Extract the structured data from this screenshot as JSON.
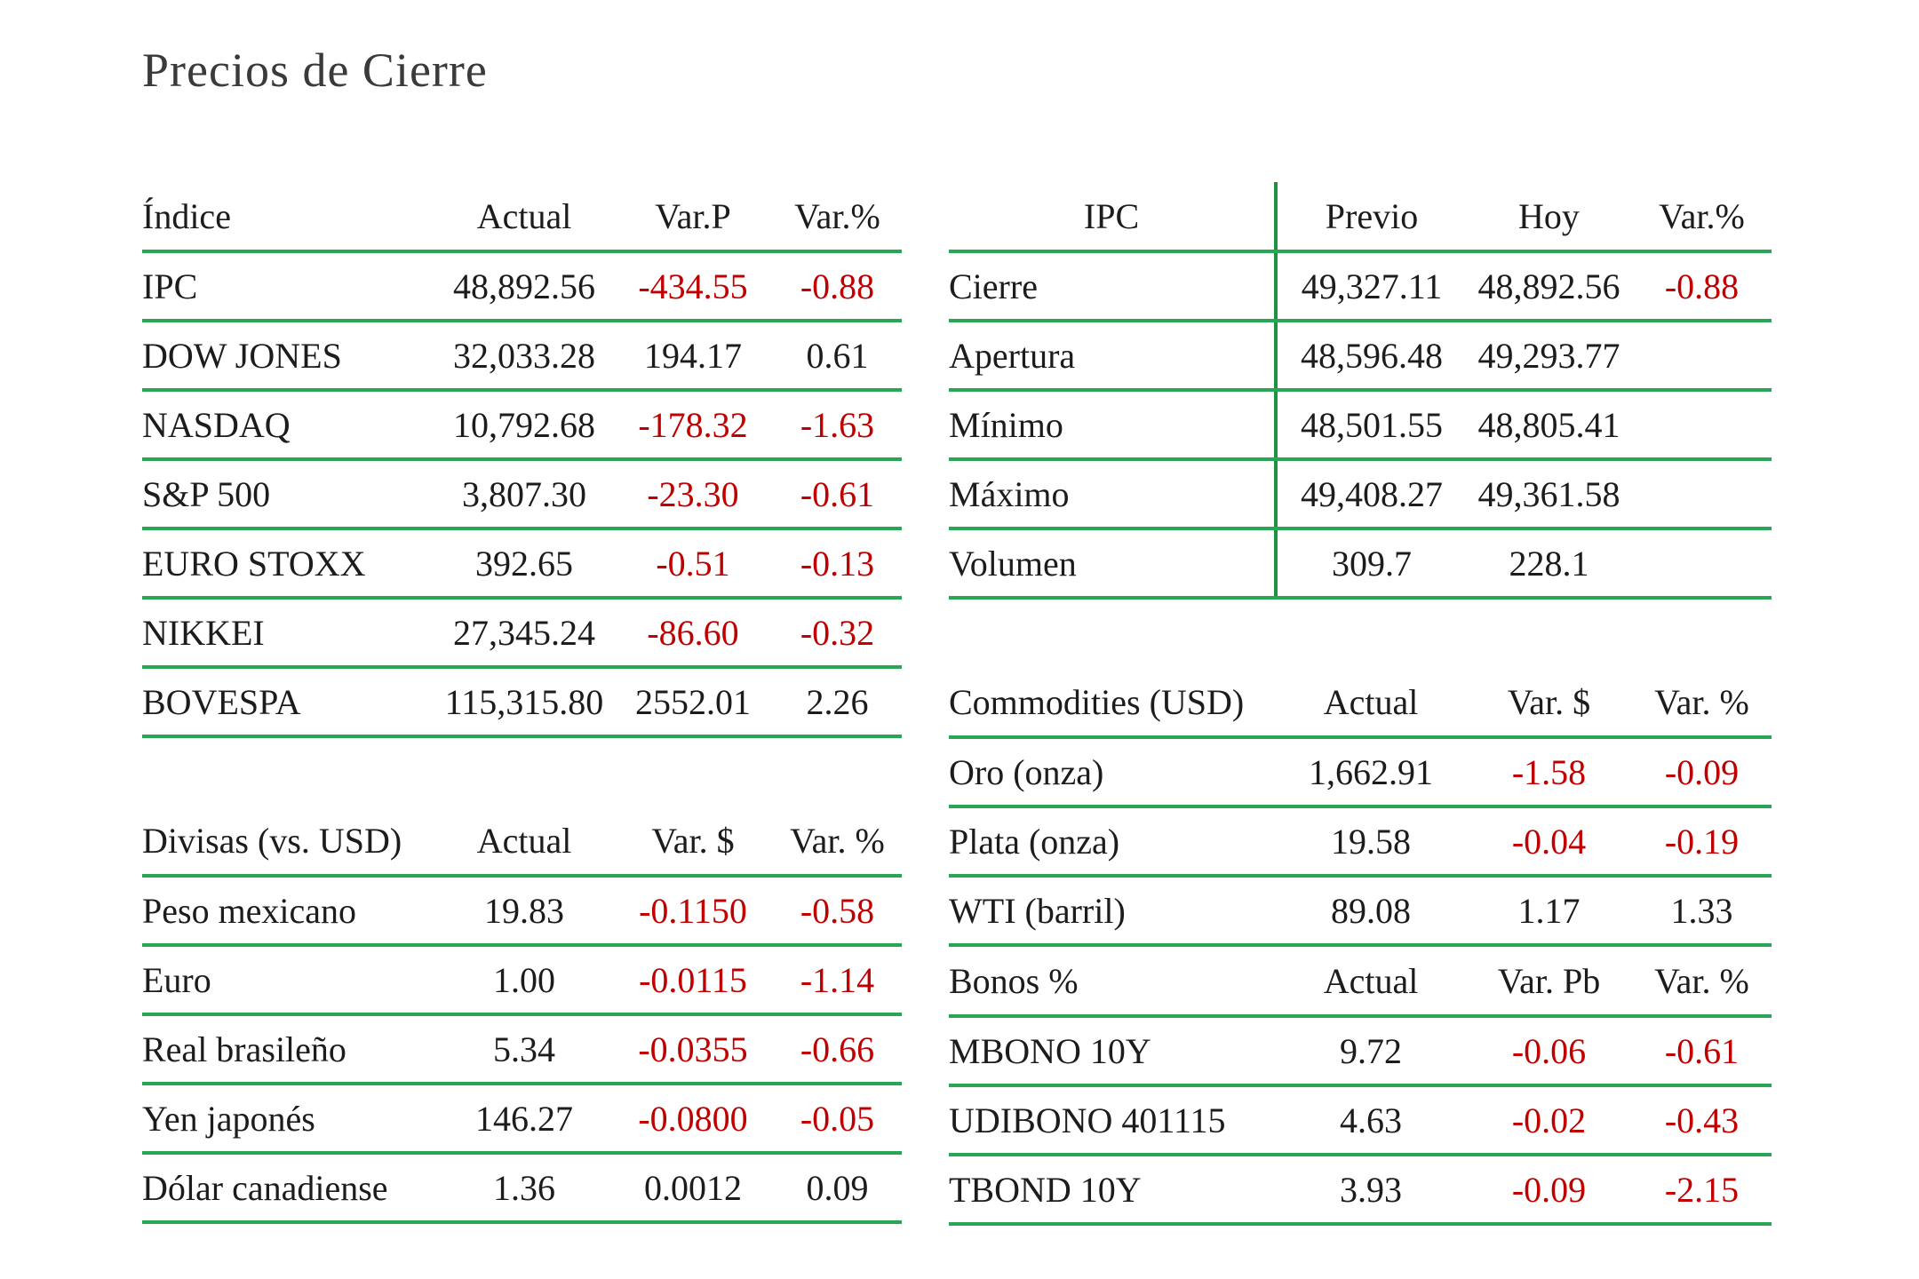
{
  "title": "Precios de Cierre",
  "colors": {
    "line_green": "#2aa558",
    "line_green_dark": "#1d9240",
    "negative_red": "#c00000",
    "text": "#1c1c1c",
    "title": "#3a3a3a"
  },
  "tables": {
    "indices": {
      "headers": [
        "Índice",
        "Actual",
        "Var.P",
        "Var.%"
      ],
      "rows": [
        [
          "IPC",
          "48,892.56",
          "-434.55",
          "-0.88"
        ],
        [
          "DOW JONES",
          "32,033.28",
          "194.17",
          "0.61"
        ],
        [
          "NASDAQ",
          "10,792.68",
          "-178.32",
          "-1.63"
        ],
        [
          "S&P 500",
          "3,807.30",
          "-23.30",
          "-0.61"
        ],
        [
          "EURO STOXX",
          "392.65",
          "-0.51",
          "-0.13"
        ],
        [
          "NIKKEI",
          "27,345.24",
          "-86.60",
          "-0.32"
        ],
        [
          "BOVESPA",
          "115,315.80",
          "2552.01",
          "2.26"
        ]
      ]
    },
    "ipc": {
      "headers": [
        "IPC",
        "Previo",
        "Hoy",
        "Var.%"
      ],
      "rows": [
        [
          "Cierre",
          "49,327.11",
          "48,892.56",
          "-0.88"
        ],
        [
          "Apertura",
          "48,596.48",
          "49,293.77",
          ""
        ],
        [
          "Mínimo",
          "48,501.55",
          "48,805.41",
          ""
        ],
        [
          "Máximo",
          "49,408.27",
          "49,361.58",
          ""
        ],
        [
          "Volumen",
          "309.7",
          "228.1",
          ""
        ]
      ]
    },
    "divisas": {
      "headers": [
        "Divisas (vs. USD)",
        "Actual",
        "Var. $",
        "Var. %"
      ],
      "rows": [
        [
          "Peso mexicano",
          "19.83",
          "-0.1150",
          "-0.58"
        ],
        [
          "Euro",
          "1.00",
          "-0.0115",
          "-1.14"
        ],
        [
          "Real brasileño",
          "5.34",
          "-0.0355",
          "-0.66"
        ],
        [
          "Yen japonés",
          "146.27",
          "-0.0800",
          "-0.05"
        ],
        [
          "Dólar canadiense",
          "1.36",
          "0.0012",
          "0.09"
        ]
      ]
    },
    "commodities": {
      "headers": [
        "Commodities (USD)",
        "Actual",
        "Var. $",
        "Var. %"
      ],
      "rows": [
        [
          "Oro (onza)",
          "1,662.91",
          "-1.58",
          "-0.09"
        ],
        [
          "Plata (onza)",
          "19.58",
          "-0.04",
          "-0.19"
        ],
        [
          "WTI (barril)",
          "89.08",
          "1.17",
          "1.33"
        ]
      ]
    },
    "bonos": {
      "headers": [
        "Bonos %",
        "Actual",
        "Var. Pb",
        "Var. %"
      ],
      "rows": [
        [
          "MBONO 10Y",
          "9.72",
          "-0.06",
          "-0.61"
        ],
        [
          "UDIBONO 401115",
          "4.63",
          "-0.02",
          "-0.43"
        ],
        [
          "TBOND 10Y",
          "3.93",
          "-0.09",
          "-2.15"
        ]
      ]
    }
  }
}
